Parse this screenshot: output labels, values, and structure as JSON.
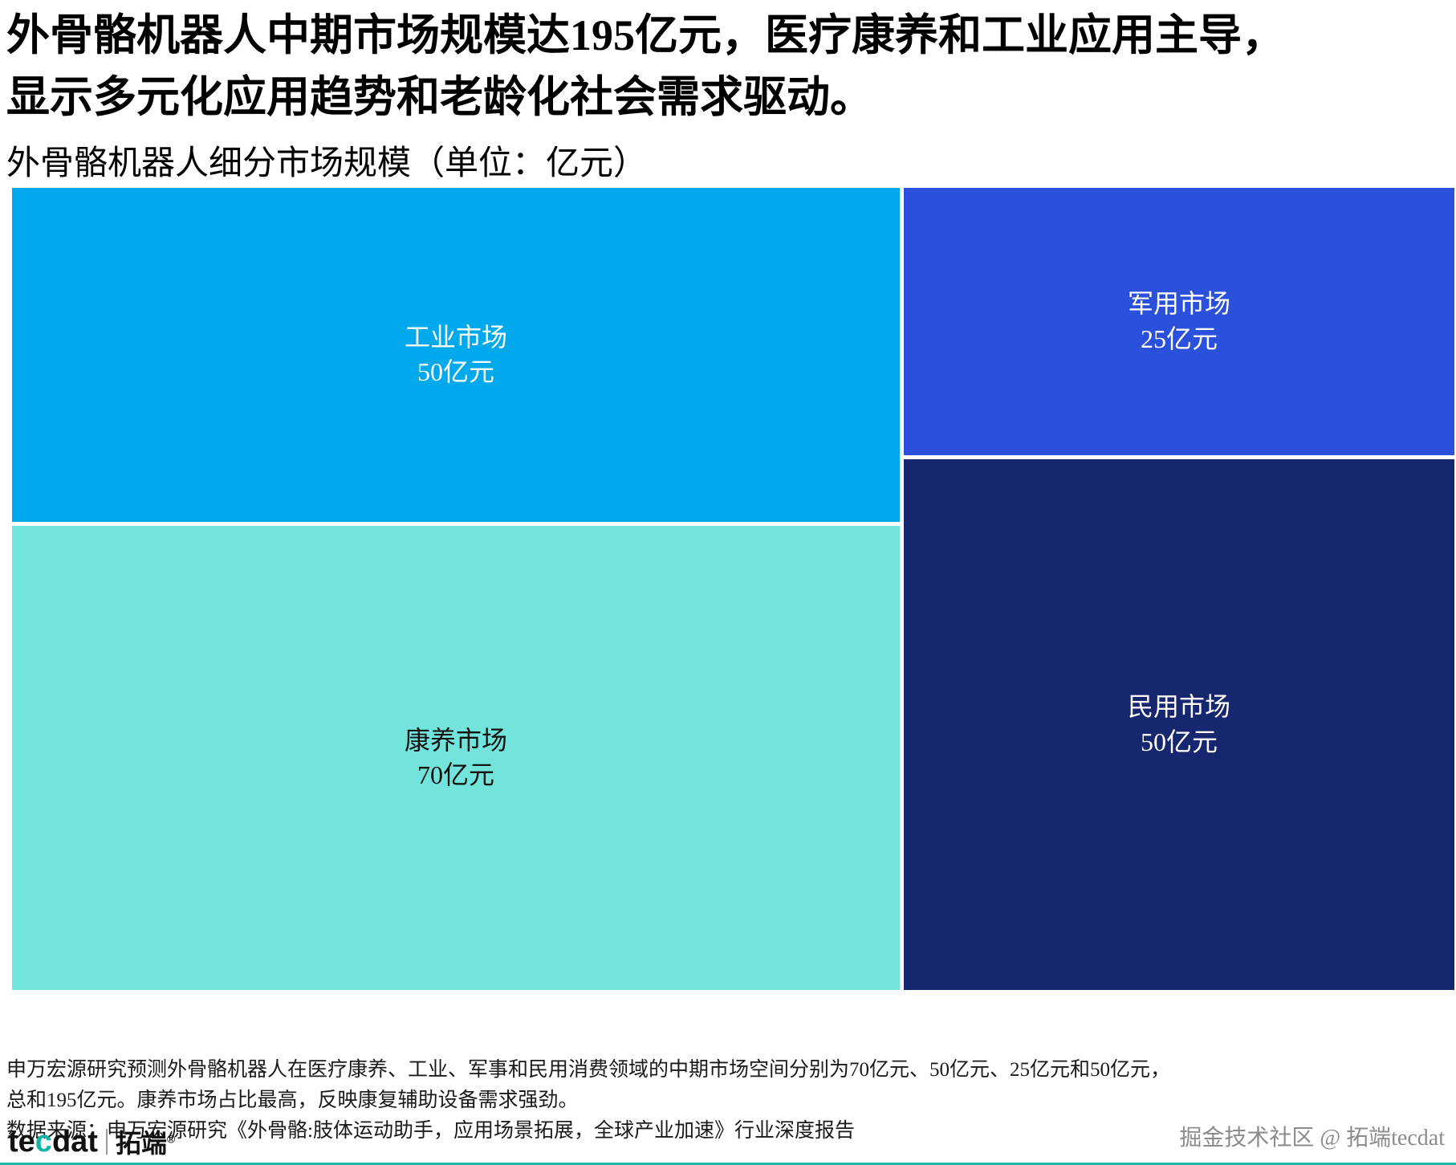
{
  "page": {
    "title_line1": "外骨骼机器人中期市场规模达195亿元，医疗康养和工业应用主导，",
    "title_line2": "显示多元化应用趋势和老龄化社会需求驱动。",
    "subtitle": "外骨骼机器人细分市场规模（单位：亿元）"
  },
  "chart_data": {
    "type": "treemap",
    "title": "外骨骼机器人细分市场规模（单位：亿元）",
    "unit": "亿元",
    "total": 195,
    "legend": "none",
    "cells": [
      {
        "name": "工业市场",
        "value": 50,
        "value_label": "50亿元",
        "color": "#00a8ec",
        "text_color": "#ffffff"
      },
      {
        "name": "康养市场",
        "value": 70,
        "value_label": "70亿元",
        "color": "#73e4db",
        "text_color": "#111111"
      },
      {
        "name": "军用市场",
        "value": 25,
        "value_label": "25亿元",
        "color": "#2b50dc",
        "text_color": "#ffffff"
      },
      {
        "name": "民用市场",
        "value": 50,
        "value_label": "50亿元",
        "color": "#16276f",
        "text_color": "#ffffff"
      }
    ]
  },
  "footer": {
    "note_line1": "申万宏源研究预测外骨骼机器人在医疗康养、工业、军事和民用消费领域的中期市场空间分别为70亿元、50亿元、25亿元和50亿元，",
    "note_line2": "总和195亿元。康养市场占比最高，反映康复辅助设备需求强劲。",
    "source": "数据来源：申万宏源研究《外骨骼:肢体运动助手，应用场景拓展，全球产业加速》行业深度报告",
    "watermark": "掘金技术社区 @ 拓端tecdat",
    "logo": {
      "part1": "te",
      "accent": "c",
      "part2": "dat",
      "brand": "拓端",
      "reg": "®"
    }
  }
}
